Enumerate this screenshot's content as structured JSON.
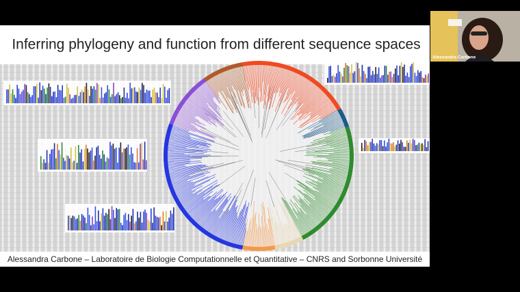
{
  "slide": {
    "title": "Inferring phylogeny and function from different sequence spaces",
    "footer": "Alessandra Carbone – Laboratoire de Biologie Computationnelle et Quantitative – CNRS and Sorbonne Université"
  },
  "participant": {
    "name": "Alessandra Carbone"
  }
}
